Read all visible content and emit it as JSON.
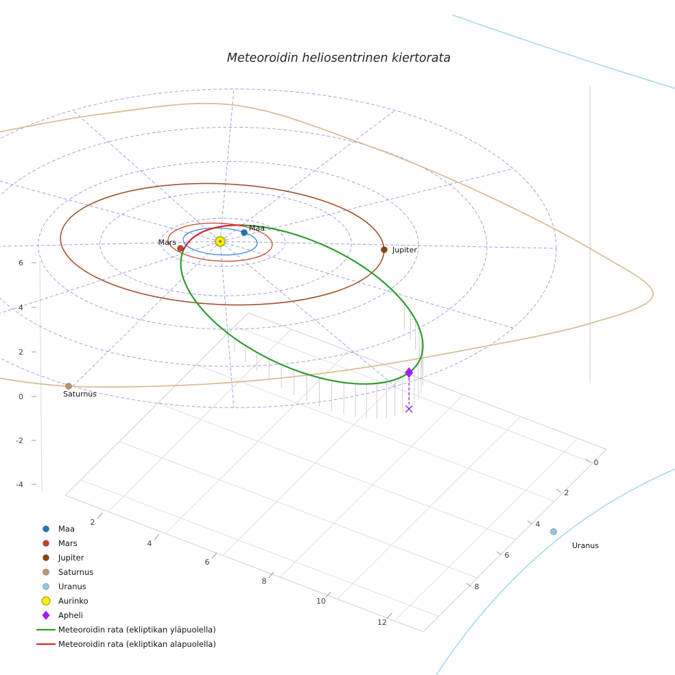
{
  "title": "Meteoroidin heliosentrinen kiertorata",
  "sun": {
    "label": "Aurinko",
    "color": "#ffee00",
    "edge_color": "#a3a314"
  },
  "apheli": {
    "label": "Apheli",
    "color": "#a020f0"
  },
  "planets": [
    {
      "name": "Maa",
      "color": "#1f77b4",
      "orbit_color": "#4a90d2",
      "orbit_radius_au": 1.0
    },
    {
      "name": "Mars",
      "color": "#c0442c",
      "orbit_color": "#c65337",
      "orbit_radius_au": 1.52
    },
    {
      "name": "Jupiter",
      "color": "#8b4513",
      "orbit_color": "#a0522d",
      "orbit_radius_au": 5.2
    },
    {
      "name": "Saturnus",
      "color": "#bf9668",
      "orbit_color": "#d8bd96",
      "orbit_radius_au": 9.58
    },
    {
      "name": "Uranus",
      "color": "#8fc8e8",
      "orbit_color": "#a5d8ed",
      "orbit_radius_au": 19.2
    }
  ],
  "meteoroid": {
    "above_label": "Meteoroidin rata (ekliptikan yläpuolella)",
    "above_color": "#2c9c2c",
    "below_label": "Meteoroidin rata (ekliptikan alapuolella)",
    "below_color": "#d62728"
  },
  "legend": {
    "items": [
      {
        "label": "Maa",
        "marker": "dot",
        "color": "#1f77b4"
      },
      {
        "label": "Mars",
        "marker": "dot",
        "color": "#c0442c"
      },
      {
        "label": "Jupiter",
        "marker": "dot",
        "color": "#8b4513"
      },
      {
        "label": "Saturnus",
        "marker": "dot",
        "color": "#bf9668"
      },
      {
        "label": "Uranus",
        "marker": "dot",
        "color": "#8fc8e8"
      },
      {
        "label": "Aurinko",
        "marker": "sun",
        "color": "#ffee00",
        "edge": "#a3a314"
      },
      {
        "label": "Apheli",
        "marker": "diamond",
        "color": "#a020f0"
      },
      {
        "label": "Meteoroidin rata (ekliptikan yläpuolella)",
        "marker": "line",
        "color": "#2c9c2c"
      },
      {
        "label": "Meteoroidin rata (ekliptikan alapuolella)",
        "marker": "line",
        "color": "#d62728"
      }
    ]
  },
  "axes": {
    "x_ticks": [
      2,
      4,
      6,
      8,
      10,
      12
    ],
    "y_ticks": [
      0,
      2,
      4,
      6,
      8
    ],
    "z_ticks": [
      6,
      4,
      2,
      0,
      -2,
      -4
    ]
  },
  "grid": {
    "polar_color": "#4040c0",
    "pane_color": "#dedede"
  },
  "chart_data": {
    "type": "line",
    "projection": "3d",
    "title": "Meteoroidin heliosentrinen kiertorata",
    "axes": {
      "x_ticks": [
        2,
        4,
        6,
        8,
        10,
        12
      ],
      "y_ticks": [
        0,
        2,
        4,
        6,
        8
      ],
      "z_ticks": [
        -4,
        -2,
        0,
        2,
        4,
        6
      ],
      "grid": true
    },
    "legend_position": "lower left",
    "ecliptic_grid": {
      "style": "dashed-polar",
      "radial_step_deg": 30,
      "ring_count": 5
    },
    "series": [
      {
        "name": "Maa",
        "kind": "planet-orbit",
        "radius_au": 1.0
      },
      {
        "name": "Mars",
        "kind": "planet-orbit",
        "radius_au": 1.52
      },
      {
        "name": "Jupiter",
        "kind": "planet-orbit",
        "radius_au": 5.2
      },
      {
        "name": "Saturnus",
        "kind": "planet-orbit",
        "radius_au": 9.58
      },
      {
        "name": "Uranus",
        "kind": "planet-orbit",
        "radius_au": 19.2
      },
      {
        "name": "Meteoroidin rata (ekliptikan yläpuolella)",
        "kind": "trajectory-segment",
        "side": "above-ecliptic"
      },
      {
        "name": "Meteoroidin rata (ekliptikan alapuolella)",
        "kind": "trajectory-segment",
        "side": "below-ecliptic"
      }
    ],
    "markers": [
      {
        "name": "Aurinko",
        "kind": "sun",
        "position": "origin"
      },
      {
        "name": "Apheli",
        "kind": "aphelion",
        "note": "dashed drop line to ecliptic plane ends in x marker"
      }
    ],
    "meteoroid_orbit_estimate": {
      "perihelion_au": 1.0,
      "aphelion_au": 5.5,
      "inclined": true
    }
  }
}
